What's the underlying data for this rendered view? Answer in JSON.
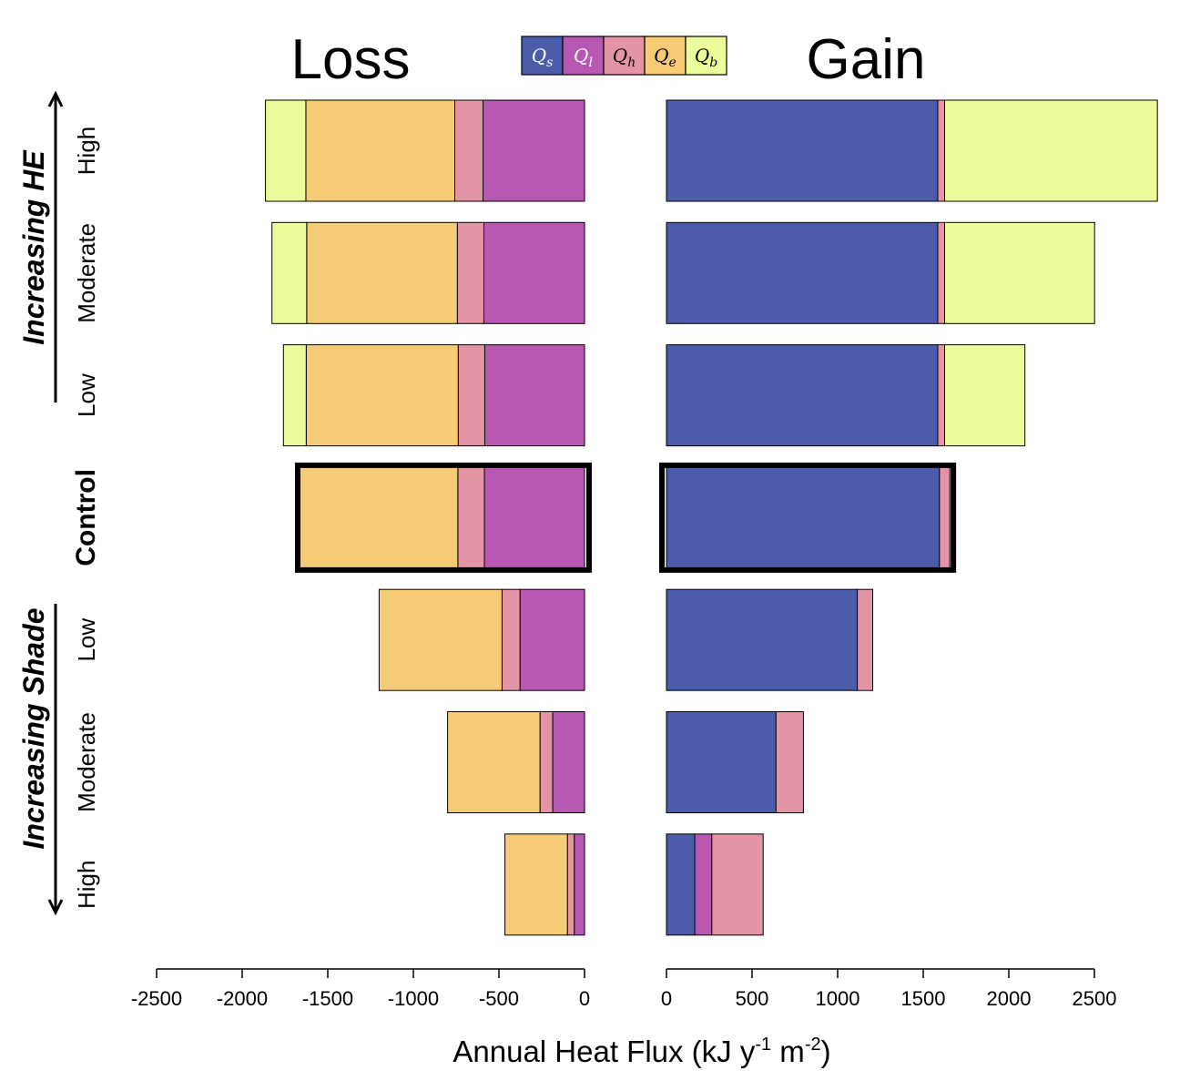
{
  "chart_data": {
    "type": "bar",
    "orientation": "horizontal",
    "stacked": true,
    "panels": [
      {
        "title": "Loss",
        "xlim": [
          -2500,
          0
        ],
        "ticks": [
          -2500,
          -2000,
          -1500,
          -1000,
          -500,
          0
        ]
      },
      {
        "title": "Gain",
        "xlim": [
          0,
          2500
        ],
        "ticks": [
          0,
          500,
          1000,
          1500,
          2000,
          2500
        ]
      }
    ],
    "xlabel": "Annual Heat Flux (kJ y-1 m-2)",
    "xlabel_parts": {
      "main": "Annual Heat Flux (kJ y",
      "exp1": "-1",
      "mid": " m",
      "exp2": "-2",
      "end": ")"
    },
    "legend": {
      "placement": "top-center",
      "items": [
        {
          "key": "Qs",
          "base": "Q",
          "sub": "s",
          "color": "#4b5daa"
        },
        {
          "key": "Ql",
          "base": "Q",
          "sub": "l",
          "color": "#b858b3"
        },
        {
          "key": "Qh",
          "base": "Q",
          "sub": "h",
          "color": "#e495a5"
        },
        {
          "key": "Qe",
          "base": "Q",
          "sub": "e",
          "color": "#f5cb76"
        },
        {
          "key": "Qb",
          "base": "Q",
          "sub": "b",
          "color": "#eafd9a"
        }
      ]
    },
    "groups": [
      {
        "title": "Increasing HE",
        "arrow": "up",
        "scenarios": [
          "High",
          "Moderate",
          "Low"
        ]
      },
      {
        "title": "Control",
        "scenarios": [
          "Control"
        ],
        "highlight": true
      },
      {
        "title": "Increasing Shade",
        "arrow": "down",
        "scenarios": [
          "Low",
          "Moderate",
          "High"
        ]
      }
    ],
    "rows": [
      {
        "label": "High",
        "group": "HE",
        "loss": {
          "Ql": 593,
          "Qh": 165,
          "Qe": 870,
          "Qb": 236
        },
        "gain": {
          "Qs": 1585,
          "Qh": 40,
          "Qb": 1243
        }
      },
      {
        "label": "Moderate",
        "group": "HE",
        "loss": {
          "Ql": 588,
          "Qh": 155,
          "Qe": 880,
          "Qb": 203
        },
        "gain": {
          "Qs": 1585,
          "Qh": 40,
          "Qb": 876
        }
      },
      {
        "label": "Low",
        "group": "HE",
        "loss": {
          "Ql": 583,
          "Qh": 155,
          "Qe": 888,
          "Qb": 133
        },
        "gain": {
          "Qs": 1585,
          "Qh": 40,
          "Qb": 469
        }
      },
      {
        "label": "Control",
        "group": "Control",
        "highlight": true,
        "loss": {
          "Ql": 585,
          "Qh": 155,
          "Qe": 925,
          "Qb": 0
        },
        "gain": {
          "Qs": 1595,
          "Qh": 60,
          "Qb": 0
        }
      },
      {
        "label": "Low",
        "group": "Shade",
        "loss": {
          "Ql": 377,
          "Qh": 105,
          "Qe": 718,
          "Qb": 0
        },
        "gain": {
          "Qs": 1115,
          "Qh": 90,
          "Qb": 0
        }
      },
      {
        "label": "Moderate",
        "group": "Shade",
        "loss": {
          "Ql": 186,
          "Qh": 74,
          "Qe": 540,
          "Qb": 0
        },
        "gain": {
          "Qs": 640,
          "Qh": 160,
          "Qb": 0
        }
      },
      {
        "label": "High",
        "group": "Shade",
        "loss": {
          "Ql": 60,
          "Qh": 40,
          "Qe": 365,
          "Qb": 0
        },
        "gain": {
          "Qs": 165,
          "Qh": 300,
          "Qb": 0,
          "Ql": 100
        }
      }
    ]
  }
}
